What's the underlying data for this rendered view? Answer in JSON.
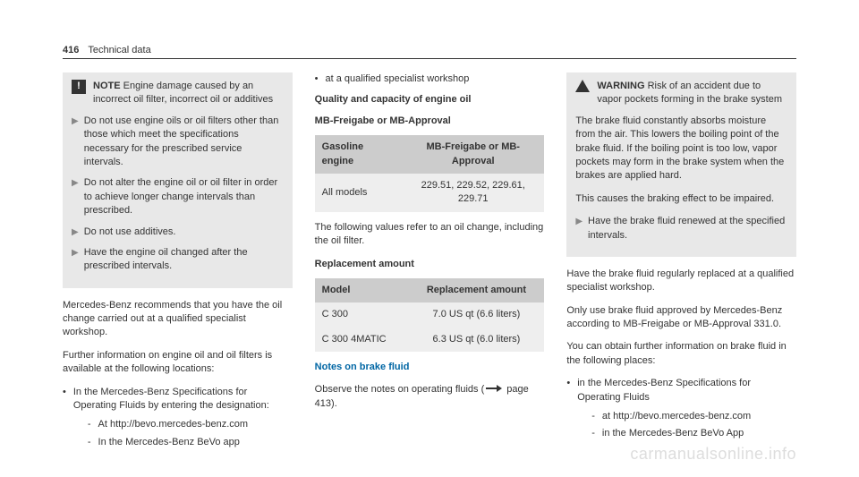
{
  "header": {
    "page_number": "416",
    "section": "Technical data"
  },
  "col1": {
    "note": {
      "label": "NOTE",
      "text": "Engine damage caused by an incorrect oil filter, incorrect oil or additives",
      "items": [
        "Do not use engine oils or oil filters other than those which meet the specifications necessary for the prescribed service intervals.",
        "Do not alter the engine oil or oil filter in order to achieve longer change intervals than prescribed.",
        "Do not use additives.",
        "Have the engine oil changed after the prescribed intervals."
      ]
    },
    "para1": "Mercedes-Benz recommends that you have the oil change carried out at a qualified specialist workshop.",
    "para2": "Further information on engine oil and oil filters is available at the following locations:",
    "bullet1_text": "In the Mercedes-Benz Specifications for Operating Fluids by entering the designation:",
    "sub1": "At http://bevo.mercedes-benz.com",
    "sub2": "In the Mercedes-Benz BeVo app"
  },
  "col2": {
    "bullet1": "at a qualified specialist workshop",
    "heading1": "Quality and capacity of engine oil",
    "heading2": "MB-Freigabe or MB-Approval",
    "table1": {
      "h1": "Gasoline engine",
      "h2": "MB-Freigabe or MB-Approval",
      "r1c1": "All models",
      "r1c2": "229.51, 229.52, 229.61, 229.71"
    },
    "para1": "The following values refer to an oil change, including the oil filter.",
    "heading3": "Replacement amount",
    "table2": {
      "h1": "Model",
      "h2": "Replacement amount",
      "r1c1": "C 300",
      "r1c2": "7.0 US qt (6.6 liters)",
      "r2c1": "C 300 4MATIC",
      "r2c2": "6.3 US qt (6.0 liters)"
    },
    "section_heading": "Notes on brake fluid",
    "para2a": "Observe the notes on operating fluids (",
    "para2b": " page 413)."
  },
  "col3": {
    "warning": {
      "label": "WARNING",
      "text": "Risk of an accident due to vapor pockets forming in the brake system",
      "para1": "The brake fluid constantly absorbs moisture from the air. This lowers the boiling point of the brake fluid. If the boiling point is too low, vapor pockets may form in the brake system when the brakes are applied hard.",
      "para2": "This causes the braking effect to be impaired.",
      "action": "Have the brake fluid renewed at the specified intervals."
    },
    "para1": "Have the brake fluid regularly replaced at a qualified specialist workshop.",
    "para2": "Only use brake fluid approved by Mercedes-Benz according to MB-Freigabe or MB-Approval 331.0.",
    "para3": "You can obtain further information on brake fluid in the following places:",
    "bullet1": "in the Mercedes-Benz Specifications for Operating Fluids",
    "sub1": "at http://bevo.mercedes-benz.com",
    "sub2": "in the Mercedes-Benz BeVo App"
  },
  "watermark": "carmanualsonline.info"
}
